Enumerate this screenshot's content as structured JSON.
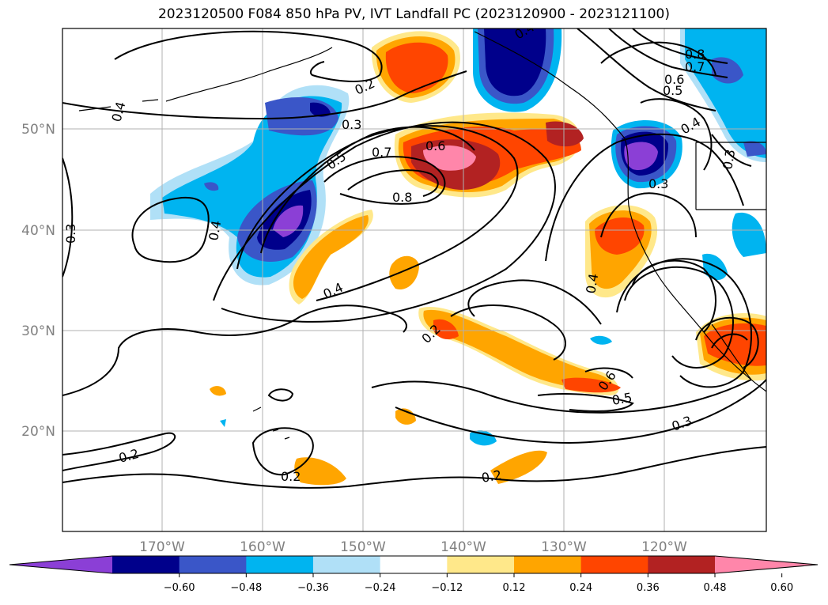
{
  "title": "2023120500 F084 850 hPa PV, IVT Landfall PC (2023120900 - 2023121100)",
  "map": {
    "lat_labels": [
      "50°N",
      "40°N",
      "30°N",
      "20°N"
    ],
    "lon_labels": [
      "170°W",
      "160°W",
      "150°W",
      "140°W",
      "130°W",
      "120°W"
    ]
  },
  "colorbar": {
    "labels": [
      "−0.60",
      "−0.48",
      "−0.36",
      "−0.24",
      "−0.12",
      "0.12",
      "0.24",
      "0.36",
      "0.48",
      "0.60"
    ],
    "colors": [
      "#8b3fd6",
      "#00008b",
      "#3a56c8",
      "#00b4f0",
      "#b0e0f7",
      "#ffffff",
      "#ffe88a",
      "#ffa500",
      "#ff4500",
      "#b22222",
      "#ff86aa"
    ]
  },
  "contour_labels": [
    "0.2",
    "0.3",
    "0.4",
    "0.5",
    "0.6",
    "0.7",
    "0.8"
  ],
  "colors": {
    "contour": "#000000",
    "coast": "#000000",
    "grid": "#b0b0b0"
  }
}
